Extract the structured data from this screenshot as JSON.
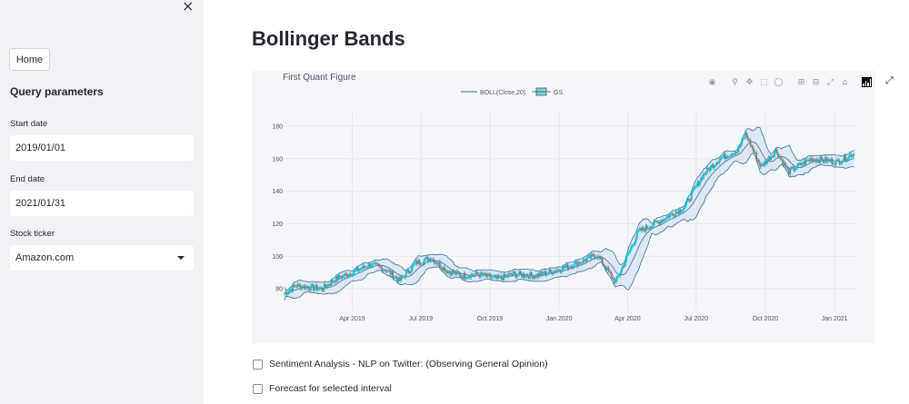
{
  "sidebar": {
    "close_icon": "×",
    "home_button": "Home",
    "heading": "Query parameters",
    "start_date_label": "Start date",
    "start_date_value": "2019/01/01",
    "end_date_label": "End date",
    "end_date_value": "2021/01/31",
    "ticker_label": "Stock ticker",
    "ticker_value": "Amazon.com"
  },
  "main": {
    "title": "Bollinger Bands",
    "checkbox_sentiment": "Sentiment Analysis - NLP on Twitter: (Observing General Opinion)",
    "checkbox_forecast": "Forecast for selected interval"
  },
  "toolbar_icons": [
    "camera-icon",
    "zoom-icon",
    "pan-icon",
    "box-select-icon",
    "lasso-icon",
    "zoom-in-icon",
    "zoom-out-icon",
    "autoscale-icon",
    "reset-axes-icon",
    "plotly-logo-icon"
  ],
  "colors": {
    "band": "#3a6ea5",
    "band_fill": "#dde6f3",
    "increasing": "#17becf",
    "decreasing": "#808080",
    "panel": "#f5f6f9"
  },
  "chart_data": {
    "type": "candlestick",
    "title": "First Quant Figure",
    "legend": [
      "BOLL(Close,20)",
      "GS"
    ],
    "legend_position": "top-center",
    "grid": true,
    "x_ticks": [
      "Apr 2019",
      "Jul 2019",
      "Oct 2019",
      "Jan 2020",
      "Apr 2020",
      "Jul 2020",
      "Oct 2020",
      "Jan 2021"
    ],
    "y_ticks": [
      80,
      100,
      120,
      140,
      160,
      180
    ],
    "ylim": [
      70,
      185
    ],
    "xlim": [
      "2019-01-01",
      "2021-01-31"
    ],
    "close_series": [
      {
        "x": "2019-01-01",
        "y": 77
      },
      {
        "x": "2019-01-15",
        "y": 82
      },
      {
        "x": "2019-02-01",
        "y": 81
      },
      {
        "x": "2019-02-20",
        "y": 80
      },
      {
        "x": "2019-03-10",
        "y": 86
      },
      {
        "x": "2019-04-01",
        "y": 90
      },
      {
        "x": "2019-04-25",
        "y": 95
      },
      {
        "x": "2019-05-15",
        "y": 92
      },
      {
        "x": "2019-06-03",
        "y": 85
      },
      {
        "x": "2019-06-25",
        "y": 96
      },
      {
        "x": "2019-07-15",
        "y": 99
      },
      {
        "x": "2019-08-05",
        "y": 91
      },
      {
        "x": "2019-08-25",
        "y": 88
      },
      {
        "x": "2019-09-15",
        "y": 89
      },
      {
        "x": "2019-10-10",
        "y": 86
      },
      {
        "x": "2019-11-01",
        "y": 89
      },
      {
        "x": "2019-12-01",
        "y": 88
      },
      {
        "x": "2020-01-01",
        "y": 92
      },
      {
        "x": "2020-02-01",
        "y": 97
      },
      {
        "x": "2020-02-20",
        "y": 101
      },
      {
        "x": "2020-03-16",
        "y": 84
      },
      {
        "x": "2020-04-15",
        "y": 115
      },
      {
        "x": "2020-05-15",
        "y": 122
      },
      {
        "x": "2020-06-15",
        "y": 130
      },
      {
        "x": "2020-07-10",
        "y": 150
      },
      {
        "x": "2020-08-01",
        "y": 160
      },
      {
        "x": "2020-08-25",
        "y": 165
      },
      {
        "x": "2020-09-05",
        "y": 175
      },
      {
        "x": "2020-09-25",
        "y": 155
      },
      {
        "x": "2020-10-15",
        "y": 165
      },
      {
        "x": "2020-11-01",
        "y": 152
      },
      {
        "x": "2020-12-01",
        "y": 160
      },
      {
        "x": "2021-01-05",
        "y": 158
      },
      {
        "x": "2021-01-25",
        "y": 163
      }
    ]
  }
}
